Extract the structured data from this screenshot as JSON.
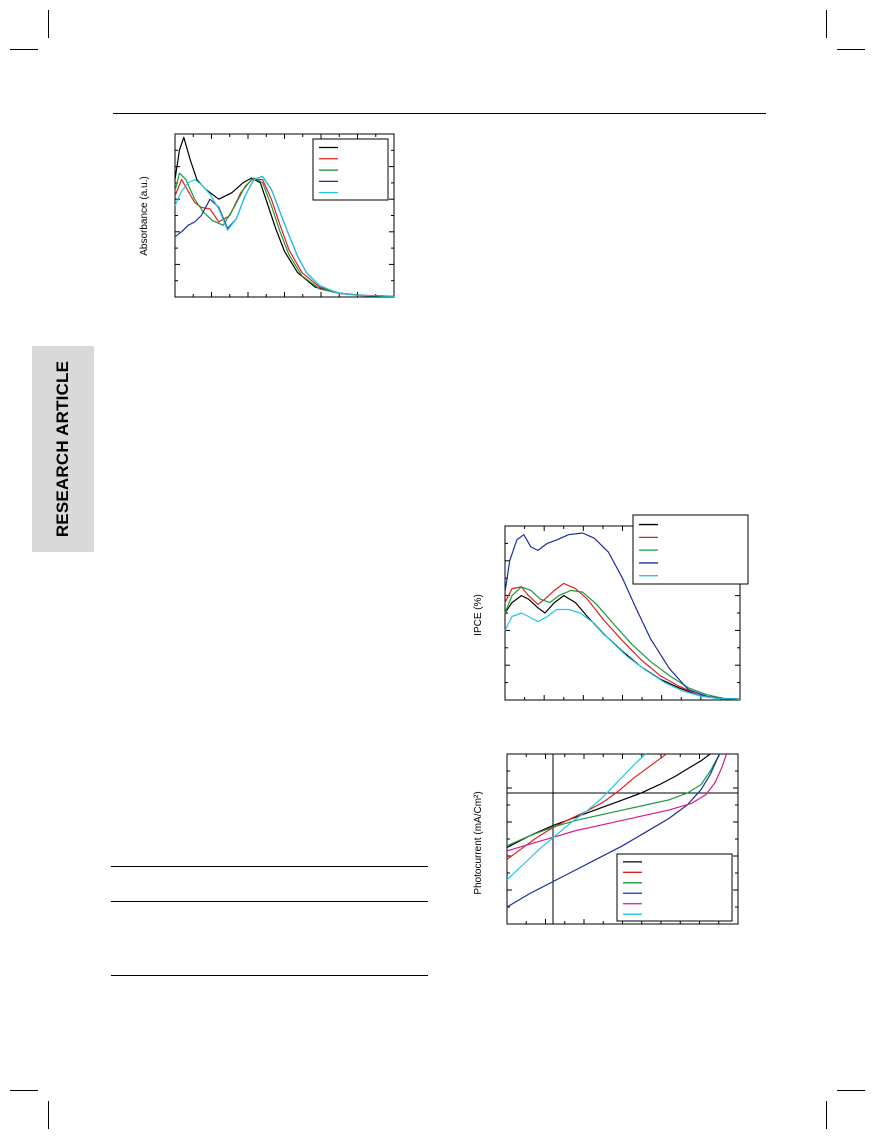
{
  "sidebar": {
    "label": "RESEARCH ARTICLE"
  },
  "figures": {
    "absorbance": {
      "chart_data": {
        "type": "line",
        "ylabel": "Absorbance (a.u.)",
        "xlim": [
          0,
          1
        ],
        "ylim": [
          0,
          1
        ],
        "legend_position": "top-right",
        "series": [
          {
            "color": "#000000",
            "x": [
              0,
              0.02,
              0.04,
              0.07,
              0.1,
              0.14,
              0.2,
              0.26,
              0.31,
              0.35,
              0.39,
              0.42,
              0.46,
              0.5,
              0.56,
              0.64,
              0.74,
              0.85,
              1
            ],
            "y": [
              0.72,
              0.9,
              0.98,
              0.84,
              0.72,
              0.66,
              0.6,
              0.64,
              0.7,
              0.73,
              0.7,
              0.58,
              0.42,
              0.28,
              0.15,
              0.06,
              0.025,
              0.01,
              0.005
            ]
          },
          {
            "color": "#e02020",
            "x": [
              0,
              0.03,
              0.06,
              0.09,
              0.12,
              0.16,
              0.2,
              0.25,
              0.3,
              0.35,
              0.4,
              0.44,
              0.48,
              0.52,
              0.58,
              0.66,
              0.76,
              0.88,
              1
            ],
            "y": [
              0.62,
              0.72,
              0.65,
              0.58,
              0.55,
              0.54,
              0.46,
              0.5,
              0.64,
              0.72,
              0.72,
              0.6,
              0.44,
              0.29,
              0.15,
              0.06,
              0.02,
              0.008,
              0.004
            ]
          },
          {
            "color": "#169c3c",
            "x": [
              0,
              0.02,
              0.05,
              0.09,
              0.13,
              0.17,
              0.22,
              0.27,
              0.32,
              0.36,
              0.4,
              0.44,
              0.48,
              0.52,
              0.58,
              0.66,
              0.76,
              0.88,
              1
            ],
            "y": [
              0.65,
              0.76,
              0.72,
              0.6,
              0.52,
              0.47,
              0.44,
              0.55,
              0.68,
              0.73,
              0.7,
              0.56,
              0.4,
              0.26,
              0.13,
              0.05,
              0.02,
              0.008,
              0.004
            ]
          },
          {
            "color": "#1c2ea0",
            "x": [
              0,
              0.03,
              0.06,
              0.09,
              0.12,
              0.16,
              0.2,
              0.24,
              0.28,
              0.32,
              0.36,
              0.4,
              0.44,
              0.48,
              0.52,
              0.56,
              0.6,
              0.66,
              0.74,
              0.84,
              1
            ],
            "y": [
              0.37,
              0.4,
              0.44,
              0.46,
              0.5,
              0.6,
              0.55,
              0.42,
              0.48,
              0.62,
              0.72,
              0.74,
              0.66,
              0.52,
              0.38,
              0.25,
              0.15,
              0.07,
              0.025,
              0.01,
              0.004
            ]
          },
          {
            "color": "#1ec8e8",
            "x": [
              0,
              0.03,
              0.06,
              0.09,
              0.12,
              0.16,
              0.2,
              0.24,
              0.28,
              0.32,
              0.36,
              0.4,
              0.44,
              0.48,
              0.52,
              0.56,
              0.6,
              0.66,
              0.74,
              0.84,
              1
            ],
            "y": [
              0.56,
              0.65,
              0.7,
              0.72,
              0.69,
              0.63,
              0.54,
              0.41,
              0.48,
              0.62,
              0.72,
              0.74,
              0.66,
              0.52,
              0.38,
              0.25,
              0.15,
              0.07,
              0.025,
              0.01,
              0.004
            ]
          }
        ]
      }
    },
    "ipce": {
      "chart_data": {
        "type": "line",
        "ylabel": "IPCE (%)",
        "xlim": [
          0,
          1
        ],
        "ylim": [
          0,
          1
        ],
        "legend_position": "top-right",
        "series": [
          {
            "color": "#000000",
            "x": [
              0,
              0.03,
              0.07,
              0.1,
              0.14,
              0.17,
              0.21,
              0.25,
              0.3,
              0.35,
              0.42,
              0.5,
              0.58,
              0.66,
              0.74,
              0.82,
              0.9,
              1
            ],
            "y": [
              0.5,
              0.56,
              0.6,
              0.58,
              0.53,
              0.5,
              0.56,
              0.6,
              0.56,
              0.48,
              0.38,
              0.28,
              0.19,
              0.12,
              0.07,
              0.03,
              0.01,
              0.005
            ]
          },
          {
            "color": "#e02020",
            "x": [
              0,
              0.03,
              0.07,
              0.1,
              0.14,
              0.17,
              0.21,
              0.25,
              0.3,
              0.35,
              0.42,
              0.5,
              0.58,
              0.66,
              0.74,
              0.82,
              0.9,
              1
            ],
            "y": [
              0.56,
              0.64,
              0.65,
              0.6,
              0.55,
              0.58,
              0.63,
              0.67,
              0.64,
              0.58,
              0.46,
              0.34,
              0.23,
              0.14,
              0.08,
              0.03,
              0.01,
              0.005
            ]
          },
          {
            "color": "#169c3c",
            "x": [
              0,
              0.03,
              0.07,
              0.11,
              0.15,
              0.19,
              0.23,
              0.28,
              0.33,
              0.39,
              0.46,
              0.54,
              0.62,
              0.7,
              0.78,
              0.86,
              0.93,
              1
            ],
            "y": [
              0.5,
              0.6,
              0.65,
              0.63,
              0.58,
              0.56,
              0.6,
              0.63,
              0.62,
              0.55,
              0.44,
              0.32,
              0.22,
              0.14,
              0.07,
              0.03,
              0.01,
              0.005
            ]
          },
          {
            "color": "#1c2ea0",
            "x": [
              0,
              0.02,
              0.05,
              0.08,
              0.11,
              0.14,
              0.18,
              0.22,
              0.27,
              0.33,
              0.38,
              0.44,
              0.5,
              0.56,
              0.62,
              0.7,
              0.78,
              0.86,
              0.93,
              1
            ],
            "y": [
              0.62,
              0.8,
              0.92,
              0.95,
              0.88,
              0.86,
              0.9,
              0.92,
              0.95,
              0.96,
              0.93,
              0.85,
              0.7,
              0.52,
              0.35,
              0.18,
              0.06,
              0.02,
              0.008,
              0.005
            ]
          },
          {
            "color": "#1ec8e8",
            "x": [
              0,
              0.03,
              0.07,
              0.1,
              0.14,
              0.18,
              0.22,
              0.27,
              0.32,
              0.38,
              0.45,
              0.52,
              0.6,
              0.68,
              0.76,
              0.84,
              0.92,
              1
            ],
            "y": [
              0.4,
              0.48,
              0.5,
              0.48,
              0.45,
              0.48,
              0.52,
              0.52,
              0.5,
              0.44,
              0.34,
              0.25,
              0.17,
              0.1,
              0.05,
              0.02,
              0.008,
              0.005
            ]
          }
        ]
      }
    },
    "photocurrent": {
      "chart_data": {
        "type": "line",
        "ylabel": "Photocurrent (mA/Cm²)",
        "xlim": [
          0,
          1
        ],
        "ylim": [
          0,
          1
        ],
        "legend_position": "bottom-right",
        "series": [
          {
            "color": "#000000",
            "x": [
              0,
              0.1,
              0.2,
              0.3,
              0.4,
              0.5,
              0.58,
              0.66,
              0.73,
              0.79,
              0.84,
              0.88
            ],
            "y": [
              0.45,
              0.52,
              0.58,
              0.63,
              0.68,
              0.73,
              0.77,
              0.82,
              0.87,
              0.92,
              0.96,
              1.0
            ]
          },
          {
            "color": "#e02020",
            "x": [
              0,
              0.06,
              0.12,
              0.19,
              0.26,
              0.34,
              0.42,
              0.49,
              0.55,
              0.6,
              0.65,
              0.69
            ],
            "y": [
              0.38,
              0.44,
              0.5,
              0.56,
              0.61,
              0.66,
              0.72,
              0.79,
              0.86,
              0.91,
              0.96,
              1.0
            ]
          },
          {
            "color": "#169c3c",
            "x": [
              0,
              0.1,
              0.2,
              0.3,
              0.4,
              0.5,
              0.6,
              0.7,
              0.78,
              0.84,
              0.88,
              0.92
            ],
            "y": [
              0.46,
              0.52,
              0.57,
              0.61,
              0.64,
              0.67,
              0.7,
              0.73,
              0.77,
              0.82,
              0.9,
              1.0
            ]
          },
          {
            "color": "#1c2ea0",
            "x": [
              0,
              0.1,
              0.2,
              0.3,
              0.4,
              0.5,
              0.6,
              0.7,
              0.78,
              0.84,
              0.88,
              0.92
            ],
            "y": [
              0.1,
              0.18,
              0.25,
              0.32,
              0.39,
              0.46,
              0.54,
              0.62,
              0.7,
              0.79,
              0.88,
              1.0
            ]
          },
          {
            "color": "#d81b8a",
            "x": [
              0,
              0.1,
              0.2,
              0.3,
              0.4,
              0.5,
              0.6,
              0.7,
              0.8,
              0.86,
              0.9,
              0.93,
              0.95
            ],
            "y": [
              0.43,
              0.47,
              0.51,
              0.55,
              0.58,
              0.61,
              0.64,
              0.67,
              0.71,
              0.76,
              0.83,
              0.92,
              1.0
            ]
          },
          {
            "color": "#1ec8e8",
            "x": [
              0,
              0.07,
              0.14,
              0.21,
              0.28,
              0.35,
              0.41,
              0.46,
              0.51,
              0.56,
              0.6
            ],
            "y": [
              0.26,
              0.35,
              0.44,
              0.52,
              0.6,
              0.67,
              0.74,
              0.81,
              0.88,
              0.95,
              1.0
            ]
          }
        ]
      }
    }
  }
}
